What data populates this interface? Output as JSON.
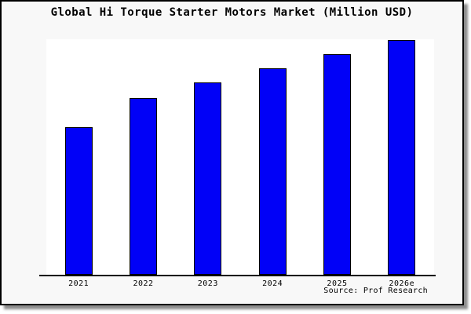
{
  "chart_data": {
    "type": "bar",
    "title": "Global Hi Torque Starter Motors Market (Million USD)",
    "categories": [
      "2021",
      "2022",
      "2023",
      "2024",
      "2025",
      "2026e"
    ],
    "values": [
      188,
      225,
      245,
      263,
      281,
      299
    ],
    "xlabel": "",
    "ylabel": "",
    "ylim": [
      0,
      300
    ],
    "units": "relative bar height (plot pixels); no numeric y-axis shown in image",
    "grid": false,
    "y_axis_visible": false,
    "legend": "none",
    "bar_color": "#0101f7",
    "bar_border_color": "#000000",
    "plot_background": "#ffffff",
    "figure_background": "#f8f8f8"
  },
  "source": {
    "label": "Source: Prof Research"
  }
}
